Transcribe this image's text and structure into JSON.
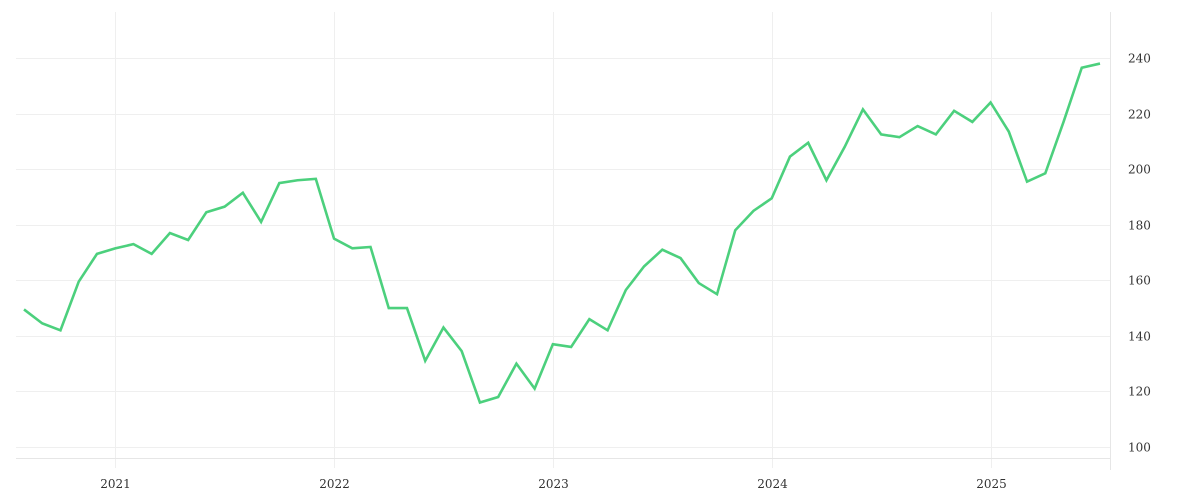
{
  "colors": {
    "line": "#4cd07d",
    "grid": "#efefef",
    "text": "#333333"
  },
  "chart_data": {
    "type": "line",
    "title": "",
    "xlabel": "",
    "ylabel": "",
    "grid": true,
    "legend": "none",
    "y_axis_side": "right",
    "xlim": [
      "2020-08",
      "2025-07"
    ],
    "ylim": [
      95,
      255
    ],
    "x_ticks": [
      "2021",
      "2022",
      "2023",
      "2024",
      "2025"
    ],
    "y_ticks": [
      100,
      120,
      140,
      160,
      180,
      200,
      220,
      240
    ],
    "series": [
      {
        "x": [
          "2020-08",
          "2020-09",
          "2020-10",
          "2020-11",
          "2020-12",
          "2021-01",
          "2021-02",
          "2021-03",
          "2021-04",
          "2021-05",
          "2021-06",
          "2021-07",
          "2021-08",
          "2021-09",
          "2021-10",
          "2021-11",
          "2021-12",
          "2022-01",
          "2022-02",
          "2022-03",
          "2022-04",
          "2022-05",
          "2022-06",
          "2022-07",
          "2022-08",
          "2022-09",
          "2022-10",
          "2022-11",
          "2022-12",
          "2023-01",
          "2023-02",
          "2023-03",
          "2023-04",
          "2023-05",
          "2023-06",
          "2023-07",
          "2023-08",
          "2023-09",
          "2023-10",
          "2023-11",
          "2023-12",
          "2024-01",
          "2024-02",
          "2024-03",
          "2024-04",
          "2024-05",
          "2024-06",
          "2024-07",
          "2024-08",
          "2024-09",
          "2024-10",
          "2024-11",
          "2024-12",
          "2025-01",
          "2025-02",
          "2025-03",
          "2025-04",
          "2025-05",
          "2025-06",
          "2025-07"
        ],
        "values": [
          149.5,
          144.5,
          142.0,
          159.5,
          169.5,
          171.5,
          173.0,
          169.5,
          177.0,
          174.5,
          184.5,
          186.5,
          191.5,
          181.0,
          195.0,
          196.0,
          196.5,
          175.0,
          171.5,
          172.0,
          150.0,
          150.0,
          131.0,
          143.0,
          134.5,
          116.0,
          118.0,
          130.0,
          121.0,
          137.0,
          136.0,
          146.0,
          142.0,
          156.5,
          165.0,
          171.0,
          168.0,
          159.0,
          155.0,
          178.0,
          185.0,
          189.5,
          204.5,
          209.5,
          196.0,
          208.0,
          221.5,
          212.5,
          211.5,
          215.5,
          212.5,
          221.0,
          217.0,
          224.0,
          213.5,
          195.5,
          198.5,
          217.0,
          236.5,
          238.0
        ]
      }
    ]
  }
}
